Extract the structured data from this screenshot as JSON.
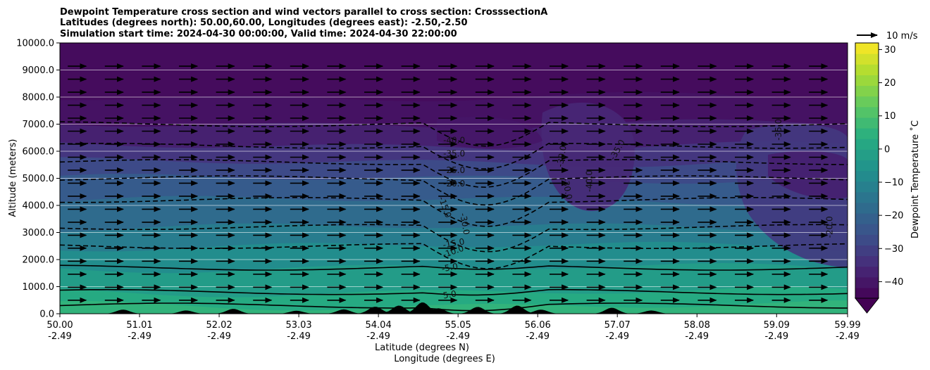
{
  "chart_data": {
    "type": "heatmap",
    "title_lines": [
      "Dewpoint Temperature cross section and wind vectors parallel to cross section: CrosssectionA",
      "Latitudes (degrees north): 50.00,60.00, Longitudes (degrees east): -2.50,-2.50",
      "Simulation start time: 2024-04-30 00:00:00, Valid time: 2024-04-30 22:00:00"
    ],
    "ylabel": "Altitude (meters)",
    "xlabel_lines": [
      "Latitude (degrees N)",
      "Longitude (degrees E)"
    ],
    "ylim": [
      0,
      10000
    ],
    "xlim": [
      50.0,
      59.99
    ],
    "y_ticks": [
      {
        "value": 0,
        "label": "0.0"
      },
      {
        "value": 1000,
        "label": "1000.0"
      },
      {
        "value": 2000,
        "label": "2000.0"
      },
      {
        "value": 3000,
        "label": "3000.0"
      },
      {
        "value": 4000,
        "label": "4000.0"
      },
      {
        "value": 5000,
        "label": "5000.0"
      },
      {
        "value": 6000,
        "label": "6000.0"
      },
      {
        "value": 7000,
        "label": "7000.0"
      },
      {
        "value": 8000,
        "label": "8000.0"
      },
      {
        "value": 9000,
        "label": "9000.0"
      },
      {
        "value": 10000,
        "label": "10000.0"
      }
    ],
    "x_ticks": [
      {
        "value": 50.0,
        "lat": "50.00",
        "lon": "-2.49"
      },
      {
        "value": 51.01,
        "lat": "51.01",
        "lon": "-2.49"
      },
      {
        "value": 52.02,
        "lat": "52.02",
        "lon": "-2.49"
      },
      {
        "value": 53.03,
        "lat": "53.03",
        "lon": "-2.49"
      },
      {
        "value": 54.04,
        "lat": "54.04",
        "lon": "-2.49"
      },
      {
        "value": 55.05,
        "lat": "55.05",
        "lon": "-2.49"
      },
      {
        "value": 56.06,
        "lat": "56.06",
        "lon": "-2.49"
      },
      {
        "value": 57.07,
        "lat": "57.07",
        "lon": "-2.49"
      },
      {
        "value": 58.08,
        "lat": "58.08",
        "lon": "-2.49"
      },
      {
        "value": 59.09,
        "lat": "59.09",
        "lon": "-2.49"
      },
      {
        "value": 59.99,
        "lat": "59.99",
        "lon": "-2.49"
      }
    ],
    "grid": {
      "horizontal": true,
      "vertical": false
    },
    "colorbar": {
      "label": "Dewpoint Temperature $^\\circ$C",
      "label_display": "Dewpoint Temperature ˚C",
      "range": [
        -45,
        32
      ],
      "ticks": [
        -40,
        -30,
        -20,
        -10,
        0,
        10,
        20,
        30
      ],
      "tick_labels": [
        "−40",
        "−30",
        "−20",
        "−10",
        "0",
        "10",
        "20",
        "30"
      ],
      "colormap": "viridis",
      "extend": "min"
    },
    "quiver_key": {
      "label": "10 m/s",
      "value": 10
    },
    "wind_vectors": {
      "direction": "parallel",
      "u_ms": 9
    },
    "dewpoint_layers_by_altitude": [
      {
        "z": 0,
        "t": 6
      },
      {
        "z": 300,
        "t": 5
      },
      {
        "z": 800,
        "t": 0
      },
      {
        "z": 1700,
        "t": -5
      },
      {
        "z": 2500,
        "t": -10
      },
      {
        "z": 3200,
        "t": -15
      },
      {
        "z": 4200,
        "t": -20
      },
      {
        "z": 5000,
        "t": -25
      },
      {
        "z": 5600,
        "t": -30
      },
      {
        "z": 6200,
        "t": -35
      },
      {
        "z": 7000,
        "t": -40
      },
      {
        "z": 8000,
        "t": -42
      },
      {
        "z": 10000,
        "t": -43
      }
    ],
    "contour_labels": [
      {
        "text": "-40.0",
        "lat": 55.0,
        "alt": 6300,
        "angle": 0
      },
      {
        "text": "-35.0",
        "lat": 55.0,
        "alt": 5800,
        "angle": 0
      },
      {
        "text": "-25.0",
        "lat": 55.0,
        "alt": 5200,
        "angle": 0
      },
      {
        "text": "-20.0",
        "lat": 55.0,
        "alt": 4700,
        "angle": 0
      },
      {
        "text": "-15.0",
        "lat": 54.85,
        "alt": 3900,
        "angle": 70
      },
      {
        "text": "-30.0",
        "lat": 55.1,
        "alt": 3300,
        "angle": 80
      },
      {
        "text": "-15.0",
        "lat": 55.0,
        "alt": 2500,
        "angle": -10
      },
      {
        "text": "-10.0",
        "lat": 55.0,
        "alt": 2200,
        "angle": -20
      },
      {
        "text": "-5.0",
        "lat": 54.95,
        "alt": 1600,
        "angle": -10
      },
      {
        "text": "5.0",
        "lat": 54.95,
        "alt": 600,
        "angle": -10
      },
      {
        "text": "-30.0",
        "lat": 56.4,
        "alt": 4600,
        "angle": 80
      },
      {
        "text": "-30.0",
        "lat": 56.4,
        "alt": 5800,
        "angle": -80
      },
      {
        "text": "-40.0",
        "lat": 56.75,
        "alt": 4900,
        "angle": -90
      },
      {
        "text": "-35.0",
        "lat": 57.1,
        "alt": 6000,
        "angle": -60
      },
      {
        "text": "-35.0",
        "lat": 59.15,
        "alt": 6800,
        "angle": -90
      },
      {
        "text": "-20.0",
        "lat": 59.8,
        "alt": 3200,
        "angle": -90
      }
    ]
  }
}
